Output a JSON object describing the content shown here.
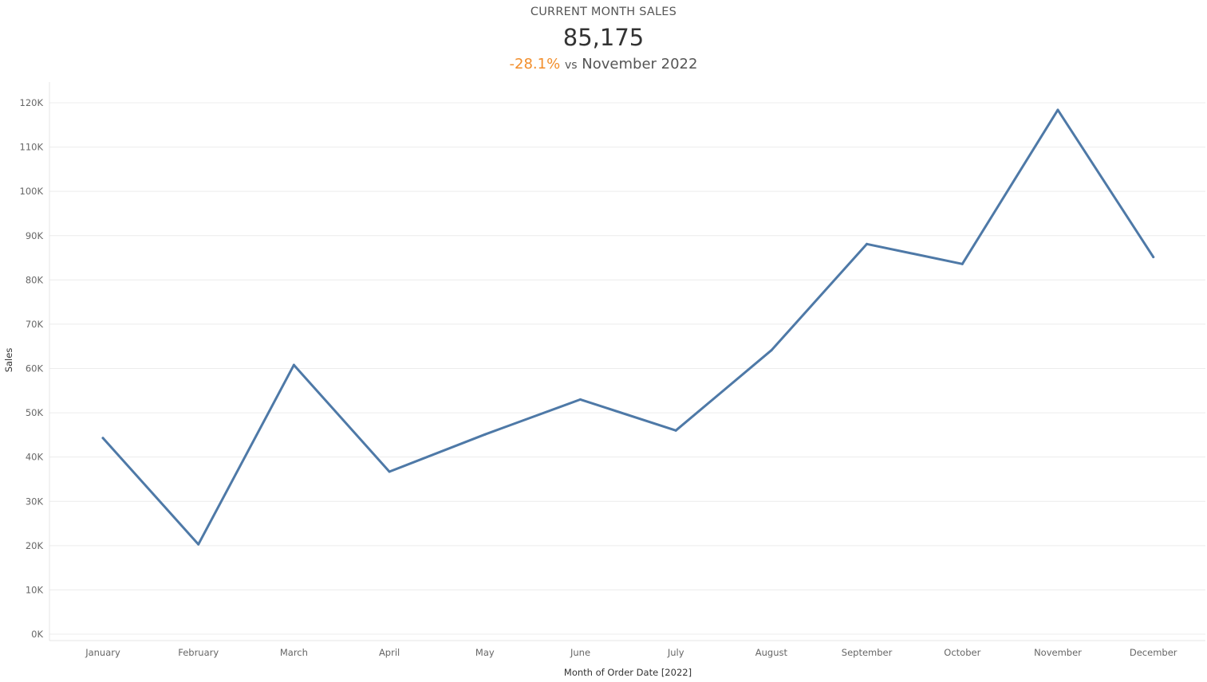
{
  "kpi": {
    "title": "CURRENT MONTH SALES",
    "value": "85,175",
    "change": "-28.1%",
    "vs": "vs",
    "period": "November 2022",
    "change_color": "#f28e2b"
  },
  "chart_data": {
    "type": "line",
    "categories": [
      "January",
      "February",
      "March",
      "April",
      "May",
      "June",
      "July",
      "August",
      "September",
      "October",
      "November",
      "December"
    ],
    "series": [
      {
        "values": [
          44300,
          20300,
          60800,
          36700,
          45100,
          53000,
          46000,
          64100,
          88100,
          83600,
          118400,
          85175
        ],
        "color": "#4e79a7"
      }
    ],
    "xlabel": "Month of Order Date [2022]",
    "ylabel": "Sales",
    "ylim": [
      0,
      120000
    ],
    "yticks": [
      "0K",
      "10K",
      "20K",
      "30K",
      "40K",
      "50K",
      "60K",
      "70K",
      "80K",
      "90K",
      "100K",
      "110K",
      "120K"
    ],
    "grid": true
  }
}
